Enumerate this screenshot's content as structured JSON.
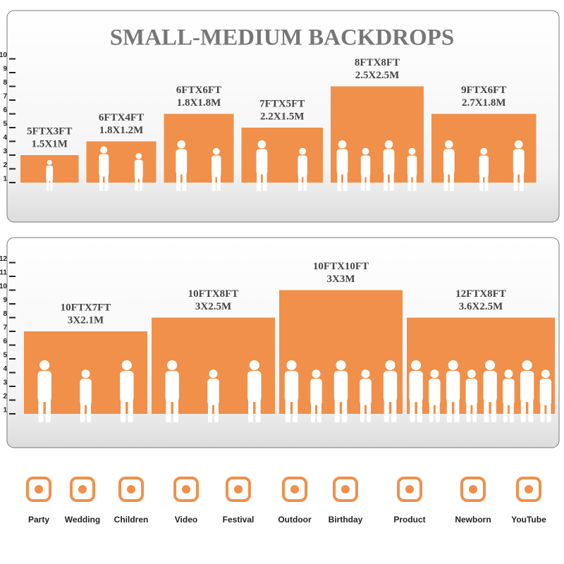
{
  "chart_data": [
    {
      "type": "bar",
      "title": "SMALL-MEDIUM BACKDROPS",
      "categories": [
        "5FTX3FT",
        "6FTX4FT",
        "6FTX6FT",
        "7FTX5FT",
        "8FTX8FT",
        "9FTX6FT"
      ],
      "sublabels": [
        "1.5X1M",
        "1.8X1.2M",
        "1.8X1.8M",
        "2.2X1.5M",
        "2.5X2.5M",
        "2.7X1.8M"
      ],
      "widths": [
        5,
        6,
        6,
        7,
        8,
        9
      ],
      "values": [
        3,
        4,
        6,
        5,
        8,
        6
      ],
      "color": "#f0904a",
      "ylim": [
        1,
        10.5
      ],
      "yticks": [
        1,
        2,
        3,
        4,
        5,
        6,
        7,
        8,
        9,
        10
      ]
    },
    {
      "type": "bar",
      "categories": [
        "10FTX7FT",
        "10FTX8FT",
        "10FTX10FT",
        "12FTX8FT"
      ],
      "sublabels": [
        "3X2.1M",
        "3X2.5M",
        "3X3M",
        "3.6X2.5M"
      ],
      "widths": [
        10,
        10,
        10,
        12
      ],
      "values": [
        7,
        8,
        10,
        8
      ],
      "color": "#f0904a",
      "ylim": [
        1,
        12.5
      ],
      "yticks": [
        1,
        2,
        3,
        4,
        5,
        6,
        7,
        8,
        9,
        10,
        11,
        12
      ]
    }
  ],
  "icons": {
    "labels": [
      "Party",
      "Wedding",
      "Children",
      "Video",
      "Festival",
      "Outdoor",
      "Birthday",
      "Product",
      "Newborn",
      "YouTube"
    ]
  }
}
